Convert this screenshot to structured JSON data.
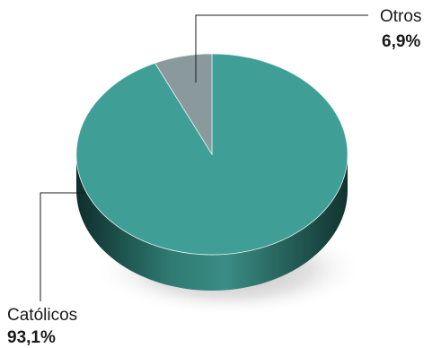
{
  "chart_data": {
    "type": "pie",
    "title": "",
    "slices": [
      {
        "label": "Católicos",
        "value": 93.1,
        "value_label": "93,1%",
        "color": "#3f9e96",
        "side_color": "#1f5a55"
      },
      {
        "label": "Otros",
        "value": 6.9,
        "value_label": "6,9%",
        "color": "#8a999b",
        "side_color": "#55605f"
      }
    ],
    "start_angle": "12 o'clock",
    "direction": "clockwise",
    "style": "3d-tilted",
    "legend": "none"
  }
}
